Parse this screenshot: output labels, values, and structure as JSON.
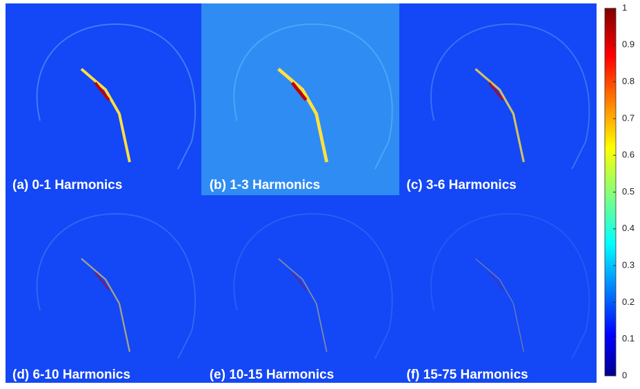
{
  "panels": [
    {
      "label": "(a) 0-1 Harmonics"
    },
    {
      "label": "(b) 1-3 Harmonics"
    },
    {
      "label": "(c) 3-6 Harmonics"
    },
    {
      "label": "(d) 6-10 Harmonics"
    },
    {
      "label": "(e) 10-15 Harmonics"
    },
    {
      "label": "(f) 15-75 Harmonics"
    }
  ],
  "colorbar": {
    "lim": [
      0,
      1
    ],
    "ticks": [
      0,
      0.1,
      0.2,
      0.3,
      0.4,
      0.5,
      0.6,
      0.7,
      0.8,
      0.9,
      1
    ]
  }
}
